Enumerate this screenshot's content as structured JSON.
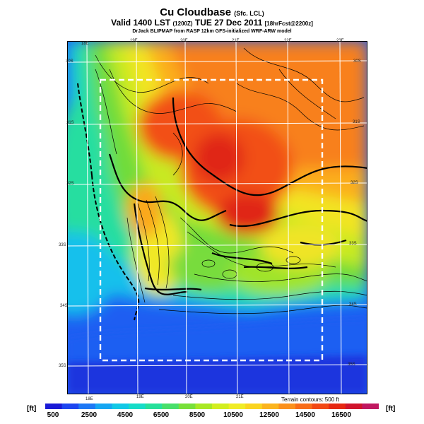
{
  "title": {
    "main": "Cu Cloudbase",
    "main_sub": "(Sfc. LCL)",
    "valid": "Valid 1400 LST",
    "valid_code": "(1200Z)",
    "valid_date": "TUE 27 Dec 2011",
    "forecast": "[18hrFcst@2200z]",
    "credit": "DrJack BLIPMAP from RASP 12km GFS-initialized WRF-ARW model"
  },
  "lon_labels": [
    "18E",
    "19E",
    "20E",
    "21E",
    "22E",
    "23E"
  ],
  "lat_labels": [
    "30S",
    "31S",
    "32S",
    "33S",
    "34S",
    "35S"
  ],
  "lon_labels_bottom": [
    "18E",
    "19E",
    "20E",
    "21E"
  ],
  "terrain_note": "Terrain contours: 500 ft",
  "colorbar": {
    "unit_left": "[ft]",
    "unit_right": "[ft]",
    "ticks": [
      "500",
      "2500",
      "4500",
      "6500",
      "8500",
      "10500",
      "12500",
      "14500",
      "16500"
    ],
    "colors": [
      "#1a1ad6",
      "#1e46f0",
      "#1e78f5",
      "#16a6f2",
      "#12c8e6",
      "#16dcc8",
      "#26e09a",
      "#48df6a",
      "#78e03a",
      "#a8e824",
      "#d2ee20",
      "#f0ec26",
      "#fad420",
      "#fbb41e",
      "#fb901c",
      "#f86c18",
      "#f24814",
      "#e62812",
      "#d0142c",
      "#c01860"
    ]
  }
}
